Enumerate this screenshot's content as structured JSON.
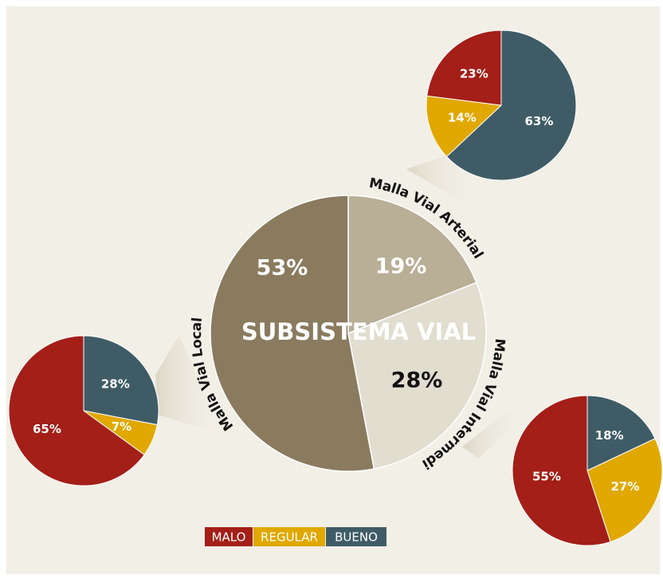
{
  "chart_data": [
    {
      "type": "pie",
      "title": "SUBSISTEMA VIAL",
      "categories": [
        "Malla Vial Arterial",
        "Malla Vial Intermedia",
        "Malla Vial Local"
      ],
      "values": [
        19,
        28,
        53
      ],
      "value_labels": [
        "19%",
        "28%",
        "53%"
      ],
      "colors": [
        "#b9ae96",
        "#e1ddcf",
        "#8a7b5f"
      ],
      "label_colors": [
        "#ffffff",
        "#111111",
        "#ffffff"
      ]
    },
    {
      "type": "pie",
      "values": [
        23,
        14,
        63
      ],
      "value_labels": [
        "23%",
        "14%",
        "63%"
      ]
    },
    {
      "type": "pie",
      "values": [
        55,
        27,
        18
      ],
      "value_labels": [
        "55%",
        "27%",
        "18%"
      ]
    },
    {
      "type": "pie",
      "values": [
        65,
        7,
        28
      ],
      "value_labels": [
        "65%",
        "7%",
        "28%"
      ]
    }
  ],
  "legend": {
    "categories": [
      "MALO",
      "REGULAR",
      "BUENO"
    ],
    "colors": [
      "#a31f18",
      "#e0a800",
      "#3f5c66"
    ]
  }
}
